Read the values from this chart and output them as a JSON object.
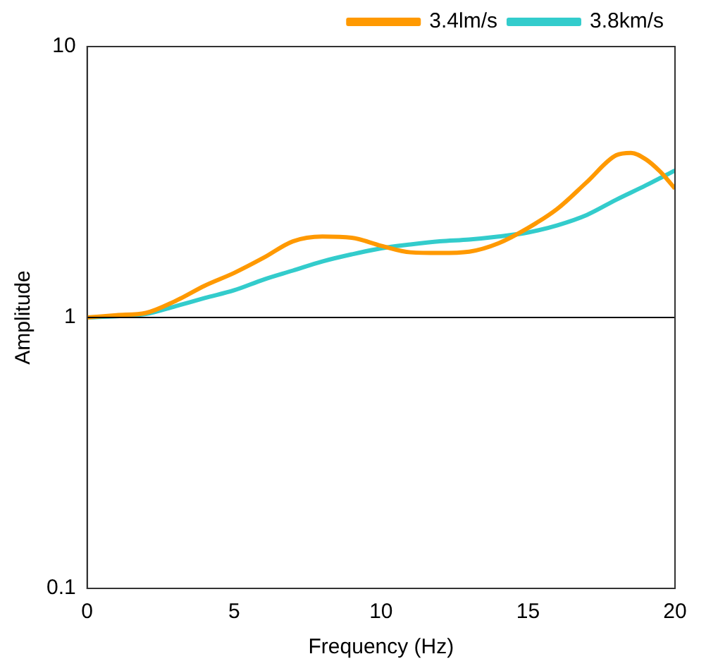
{
  "chart_data": {
    "type": "line",
    "xlabel": "Frequency (Hz)",
    "ylabel": "Amplitude",
    "log": "y",
    "grid": false,
    "legend": "top",
    "marker": "none",
    "line_style": "solid",
    "x": [
      0,
      1,
      2,
      3,
      4,
      5,
      6,
      7,
      8,
      9,
      10,
      11,
      12,
      13,
      14,
      15,
      16,
      17,
      18,
      18.5,
      19,
      19.5,
      20
    ],
    "series": [
      {
        "name": "3.4lm/s",
        "color": "#ff9900",
        "values": [
          1,
          1.02,
          1.04,
          1.15,
          1.31,
          1.46,
          1.66,
          1.91,
          1.99,
          1.97,
          1.84,
          1.74,
          1.73,
          1.75,
          1.88,
          2.14,
          2.52,
          3.16,
          3.97,
          4.05,
          3.84,
          3.45,
          2.99
        ]
      },
      {
        "name": "3.8km/s",
        "color": "#33cccc",
        "x": [
          0,
          1,
          2,
          3,
          4,
          5,
          6,
          7,
          8,
          9,
          10,
          11,
          12,
          13,
          14,
          15,
          16,
          17,
          18,
          19,
          20
        ],
        "values": [
          1,
          1.01,
          1.03,
          1.1,
          1.18,
          1.26,
          1.38,
          1.49,
          1.61,
          1.71,
          1.8,
          1.86,
          1.91,
          1.94,
          1.99,
          2.06,
          2.19,
          2.39,
          2.72,
          3.07,
          3.49
        ]
      }
    ],
    "xlim": [
      0,
      20
    ],
    "xticks": [
      0,
      5,
      10,
      15,
      20
    ],
    "ylim": [
      0.1,
      10
    ],
    "yticks": [
      0.1,
      1,
      10
    ],
    "ref_lines": [
      {
        "axis": "y",
        "value": 1,
        "color": "#000000"
      }
    ]
  }
}
